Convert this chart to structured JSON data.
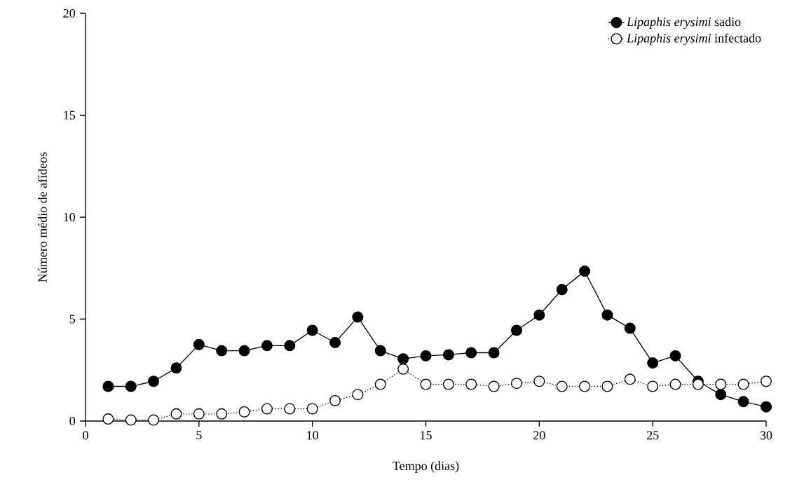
{
  "chart_data": {
    "type": "line",
    "xlabel": "Tempo (dias)",
    "ylabel": "Número médio de afídeos",
    "x": [
      1,
      2,
      3,
      4,
      5,
      6,
      7,
      8,
      9,
      10,
      11,
      12,
      13,
      14,
      15,
      16,
      17,
      18,
      19,
      20,
      21,
      22,
      23,
      24,
      25,
      26,
      27,
      28,
      29,
      30
    ],
    "series": [
      {
        "name": "*Lipaphis erysimi* sadio",
        "color": "#000000",
        "line_style": "solid",
        "values": [
          1.7,
          1.7,
          1.95,
          2.6,
          3.75,
          3.45,
          3.45,
          3.7,
          3.7,
          4.45,
          3.85,
          5.1,
          3.45,
          3.05,
          3.2,
          3.25,
          3.35,
          3.35,
          4.45,
          5.2,
          6.45,
          7.35,
          5.2,
          4.55,
          2.85,
          3.2,
          1.95,
          1.3,
          0.95,
          0.7
        ]
      },
      {
        "name": "*Lipaphis erysimi* infectado",
        "color": "#000000",
        "line_style": "dotted",
        "values": [
          0.1,
          0.05,
          0.05,
          0.35,
          0.35,
          0.35,
          0.45,
          0.6,
          0.6,
          0.6,
          1.0,
          1.3,
          1.8,
          2.55,
          1.8,
          1.8,
          1.8,
          1.7,
          1.85,
          1.95,
          1.7,
          1.7,
          1.7,
          2.05,
          1.7,
          1.8,
          1.8,
          1.8,
          1.8,
          1.95
        ]
      }
    ],
    "marker": "circle",
    "grid": false,
    "legend": "top right",
    "xlim": [
      0,
      30
    ],
    "xticks": [
      0,
      5,
      10,
      15,
      20,
      25,
      30
    ],
    "ylim": [
      0,
      20
    ],
    "yticks": [
      0,
      5,
      10,
      15,
      20
    ]
  }
}
